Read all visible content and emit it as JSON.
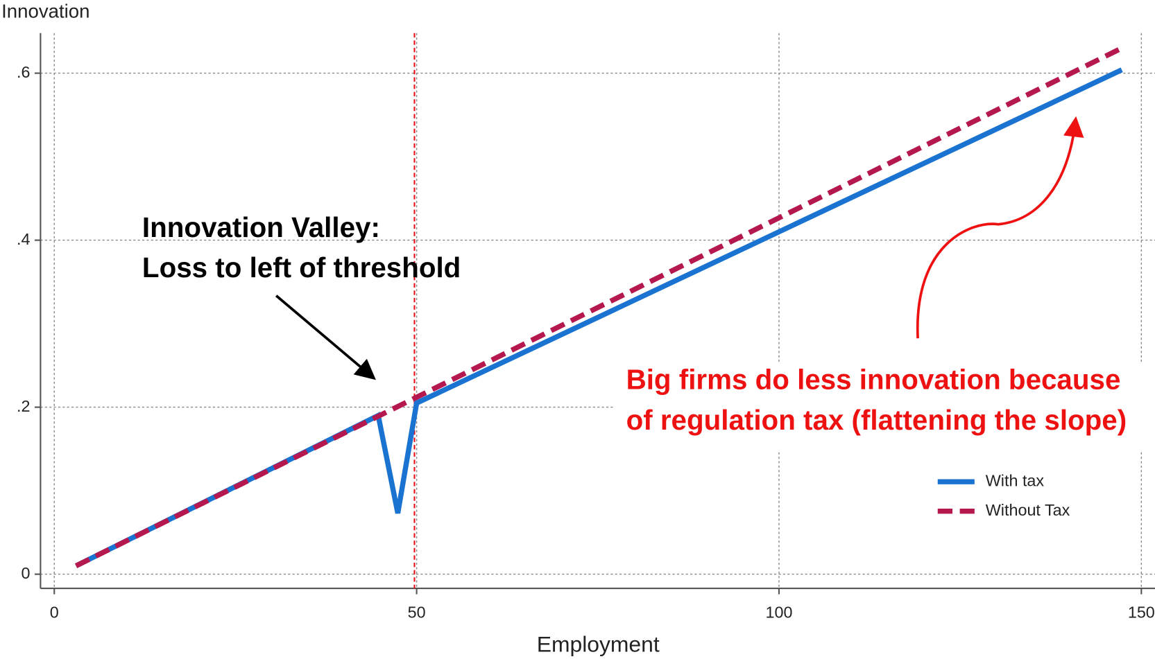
{
  "chart_data": {
    "type": "line",
    "y_label": "Innovation",
    "x_label": "Employment",
    "xlim": [
      -1.9,
      152.9
    ],
    "ylim": [
      -0.017,
      0.648
    ],
    "xticks": [
      0,
      50,
      100,
      150
    ],
    "yticks": [
      0,
      {
        "value": 0.2,
        "label": ".2"
      },
      {
        "value": 0.4,
        "label": ".4"
      },
      {
        "value": 0.6,
        "label": ".6"
      }
    ],
    "grid": true,
    "legend_position": "lower right",
    "threshold": {
      "x": 49.7,
      "color": "#e8101a"
    },
    "series": [
      {
        "name": "With tax",
        "color": "#1a73d0",
        "x": [
          3,
          44.7,
          47.4,
          50,
          147.3
        ],
        "values": [
          0.01,
          0.19,
          0.073,
          0.205,
          0.604
        ]
      },
      {
        "name": "Without Tax",
        "color": "#b5174f",
        "dashed": true,
        "x": [
          3,
          147.3
        ],
        "values": [
          0.01,
          0.63
        ]
      }
    ],
    "annotations": [
      {
        "lines": [
          "Innovation Valley:",
          "Loss to left of threshold"
        ],
        "color": "#000000"
      },
      {
        "lines": [
          "Big firms do less innovation because",
          "of regulation tax (flattening the slope)"
        ],
        "color": "#ee1111"
      }
    ]
  }
}
